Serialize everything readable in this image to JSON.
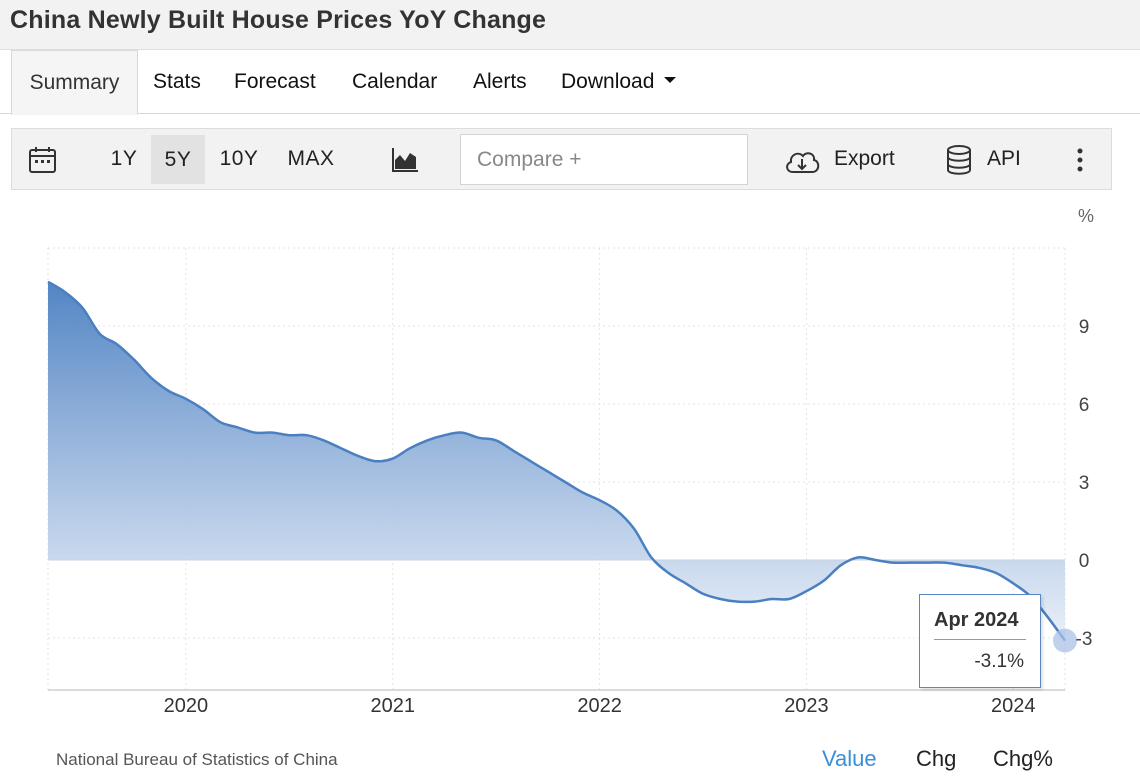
{
  "header": {
    "title": "China Newly Built House Prices YoY Change"
  },
  "tabs": [
    {
      "label": "Summary"
    },
    {
      "label": "Stats"
    },
    {
      "label": "Forecast"
    },
    {
      "label": "Calendar"
    },
    {
      "label": "Alerts"
    },
    {
      "label": "Download"
    }
  ],
  "toolbar": {
    "ranges": [
      "1Y",
      "5Y",
      "10Y",
      "MAX"
    ],
    "selected_range": "5Y",
    "compare_placeholder": "Compare +",
    "export_label": "Export",
    "api_label": "API",
    "icons": [
      "calendar-icon",
      "chart-type-icon",
      "cloud-download-icon",
      "database-icon",
      "more-vertical-icon"
    ]
  },
  "chart_data": {
    "type": "area",
    "title": "China Newly Built House Prices YoY Change",
    "ylabel": "",
    "unit_label": "%",
    "ylim": [
      -5,
      12
    ],
    "yticks": [
      9,
      6,
      3,
      0,
      -3
    ],
    "xticks": [
      "2020",
      "2021",
      "2022",
      "2023",
      "2024"
    ],
    "series": [
      {
        "x": [
          "2019-05",
          "2019-06",
          "2019-07",
          "2019-08",
          "2019-09",
          "2019-10",
          "2019-11",
          "2019-12",
          "2020-01",
          "2020-02",
          "2020-03",
          "2020-04",
          "2020-05",
          "2020-06",
          "2020-07",
          "2020-08",
          "2020-09",
          "2020-10",
          "2020-11",
          "2020-12",
          "2021-01",
          "2021-02",
          "2021-03",
          "2021-04",
          "2021-05",
          "2021-06",
          "2021-07",
          "2021-08",
          "2021-09",
          "2021-10",
          "2021-11",
          "2021-12",
          "2022-01",
          "2022-02",
          "2022-03",
          "2022-04",
          "2022-05",
          "2022-06",
          "2022-07",
          "2022-08",
          "2022-09",
          "2022-10",
          "2022-11",
          "2022-12",
          "2023-01",
          "2023-02",
          "2023-03",
          "2023-04",
          "2023-05",
          "2023-06",
          "2023-07",
          "2023-08",
          "2023-09",
          "2023-10",
          "2023-11",
          "2023-12",
          "2024-01",
          "2024-02",
          "2024-03",
          "2024-04"
        ],
        "values": [
          10.7,
          10.3,
          9.7,
          8.7,
          8.3,
          7.7,
          7.0,
          6.5,
          6.2,
          5.8,
          5.3,
          5.1,
          4.9,
          4.9,
          4.8,
          4.8,
          4.6,
          4.3,
          4.0,
          3.8,
          3.9,
          4.3,
          4.6,
          4.8,
          4.9,
          4.7,
          4.6,
          4.2,
          3.8,
          3.4,
          3.0,
          2.6,
          2.3,
          1.9,
          1.2,
          0.1,
          -0.5,
          -0.9,
          -1.3,
          -1.5,
          -1.6,
          -1.6,
          -1.5,
          -1.5,
          -1.2,
          -0.8,
          -0.2,
          0.1,
          0.0,
          -0.1,
          -0.1,
          -0.1,
          -0.1,
          -0.2,
          -0.3,
          -0.5,
          -0.9,
          -1.4,
          -2.2,
          -3.1
        ]
      }
    ],
    "grid": true,
    "legend": "none",
    "line_color": "#4a7fc1",
    "fill_top_color": "#4a7fc1",
    "fill_bottom_color": "#e7eef8"
  },
  "tooltip": {
    "date": "Apr 2024",
    "value": "-3.1%"
  },
  "footer": {
    "source": "National Bureau of Statistics of China",
    "modes": [
      "Value",
      "Chg",
      "Chg%"
    ],
    "active_mode": "Value"
  }
}
